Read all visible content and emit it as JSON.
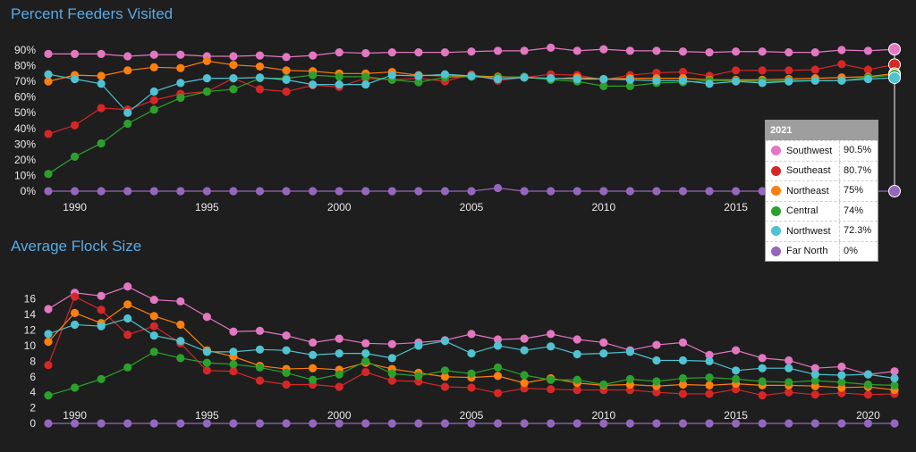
{
  "chart_data": [
    {
      "type": "line",
      "title": "Percent Feeders Visited",
      "x": [
        1989,
        1990,
        1991,
        1992,
        1993,
        1994,
        1995,
        1996,
        1997,
        1998,
        1999,
        2000,
        2001,
        2002,
        2003,
        2004,
        2005,
        2006,
        2007,
        2008,
        2009,
        2010,
        2011,
        2012,
        2013,
        2014,
        2015,
        2016,
        2017,
        2018,
        2019,
        2020,
        2021
      ],
      "xlim": [
        1989,
        2021
      ],
      "ylim": [
        0,
        90
      ],
      "y_ticks": [
        "0%",
        "10%",
        "20%",
        "30%",
        "40%",
        "50%",
        "60%",
        "70%",
        "80%",
        "90%"
      ],
      "x_ticks": [
        1990,
        1995,
        2000,
        2005,
        2010,
        2015
      ],
      "series": [
        {
          "name": "Southwest",
          "color": "#e377c2",
          "values": [
            87.5,
            87.5,
            87.5,
            86,
            87,
            87,
            86,
            86,
            86.5,
            85.5,
            86.5,
            88.5,
            88,
            88.5,
            88.5,
            88.5,
            89,
            89.5,
            89.5,
            91.5,
            89.5,
            90.5,
            89.5,
            89.5,
            89,
            88.5,
            89,
            89,
            88.5,
            88.5,
            90,
            89.5,
            90.5
          ]
        },
        {
          "name": "Southeast",
          "color": "#d62728",
          "values": [
            36.5,
            42,
            53,
            52,
            58,
            62,
            63.5,
            72,
            65,
            63.5,
            67.5,
            66.5,
            72,
            71,
            72,
            70,
            74.5,
            70.5,
            72.5,
            74.5,
            74,
            71,
            74,
            75.5,
            76,
            73.5,
            77,
            77,
            77,
            77.5,
            81,
            77.5,
            80.7
          ]
        },
        {
          "name": "Northeast",
          "color": "#ff7f0e",
          "values": [
            70,
            74,
            73.5,
            77,
            79,
            78.5,
            83,
            80.5,
            79.5,
            77,
            76.5,
            75,
            75,
            76,
            74,
            73.5,
            73.5,
            73,
            72.5,
            71.5,
            72.5,
            71.5,
            72,
            72,
            72,
            71,
            71,
            71,
            71.5,
            72,
            72.5,
            73,
            75
          ]
        },
        {
          "name": "Central",
          "color": "#2ca02c",
          "values": [
            11,
            22,
            30.5,
            43,
            52,
            59.5,
            63.5,
            65,
            72,
            72,
            74,
            73,
            73,
            71,
            69.5,
            72.5,
            73,
            72.5,
            73,
            71,
            70,
            67,
            67,
            69,
            69.5,
            70.5,
            70.5,
            70,
            70.5,
            70.5,
            70.5,
            72.5,
            74
          ]
        },
        {
          "name": "Northwest",
          "color": "#4fc3d1",
          "values": [
            74.5,
            71.5,
            68.5,
            50,
            63.5,
            69,
            72,
            72,
            72.5,
            71,
            68,
            68,
            68,
            74,
            73.5,
            74.5,
            73.5,
            71.5,
            72.5,
            72,
            71.5,
            71.5,
            71,
            70.5,
            70.5,
            68.5,
            70,
            69,
            70,
            70.5,
            70.5,
            71.5,
            72.3
          ]
        },
        {
          "name": "Far North",
          "color": "#9467bd",
          "values": [
            0,
            0,
            0,
            0,
            0,
            0,
            0,
            0,
            0,
            0,
            0,
            0,
            0,
            0,
            0,
            0,
            0,
            2,
            0,
            0,
            0,
            0,
            0,
            0,
            0,
            0,
            0,
            0,
            0,
            0,
            0,
            0,
            0
          ]
        }
      ],
      "tooltip": {
        "year": "2021",
        "rows": [
          {
            "name": "Southwest",
            "value": "90.5%",
            "color": "#e377c2"
          },
          {
            "name": "Southeast",
            "value": "80.7%",
            "color": "#d62728"
          },
          {
            "name": "Northeast",
            "value": "75%",
            "color": "#ff7f0e"
          },
          {
            "name": "Central",
            "value": "74%",
            "color": "#2ca02c"
          },
          {
            "name": "Northwest",
            "value": "72.3%",
            "color": "#4fc3d1"
          },
          {
            "name": "Far North",
            "value": "0%",
            "color": "#9467bd"
          }
        ]
      }
    },
    {
      "type": "line",
      "title": "Average Flock Size",
      "x": [
        1989,
        1990,
        1991,
        1992,
        1993,
        1994,
        1995,
        1996,
        1997,
        1998,
        1999,
        2000,
        2001,
        2002,
        2003,
        2004,
        2005,
        2006,
        2007,
        2008,
        2009,
        2010,
        2011,
        2012,
        2013,
        2014,
        2015,
        2016,
        2017,
        2018,
        2019,
        2020,
        2021
      ],
      "xlim": [
        1989,
        2021
      ],
      "ylim": [
        0,
        17
      ],
      "y_ticks": [
        0,
        2,
        4,
        6,
        8,
        10,
        12,
        14,
        16
      ],
      "x_ticks": [
        1990,
        1995,
        2000,
        2005,
        2010,
        2015,
        2020
      ],
      "series": [
        {
          "name": "Southwest",
          "color": "#e377c2",
          "values": [
            14.7,
            16.8,
            16.4,
            17.6,
            15.9,
            15.7,
            13.7,
            11.8,
            11.9,
            11.3,
            10.4,
            10.9,
            10.3,
            10.2,
            10.4,
            10.7,
            11.5,
            10.8,
            10.9,
            11.5,
            10.8,
            10.4,
            9.4,
            10.1,
            10.4,
            8.8,
            9.4,
            8.4,
            8.1,
            7.1,
            7.3,
            6.3,
            6.7
          ]
        },
        {
          "name": "Southeast",
          "color": "#d62728",
          "values": [
            7.5,
            16.3,
            14.6,
            11.4,
            12.5,
            10.3,
            6.8,
            6.7,
            5.5,
            5.0,
            5.0,
            4.7,
            6.6,
            5.5,
            5.4,
            4.7,
            4.6,
            3.9,
            4.5,
            4.4,
            4.3,
            4.3,
            4.3,
            4.0,
            3.8,
            3.8,
            4.4,
            3.6,
            4.0,
            3.7,
            3.9,
            3.7,
            3.8
          ]
        },
        {
          "name": "Northeast",
          "color": "#ff7f0e",
          "values": [
            10.5,
            14.2,
            12.9,
            15.3,
            13.8,
            12.7,
            9.4,
            8.6,
            7.4,
            7.0,
            7.1,
            6.9,
            7.8,
            7.0,
            6.5,
            6.0,
            5.9,
            6.1,
            5.2,
            5.8,
            5.2,
            4.9,
            5.0,
            4.8,
            5.0,
            4.9,
            5.1,
            4.9,
            4.9,
            4.8,
            4.6,
            4.7,
            4.3
          ]
        },
        {
          "name": "Central",
          "color": "#2ca02c",
          "values": [
            3.6,
            4.6,
            5.7,
            7.2,
            9.2,
            8.4,
            7.8,
            7.6,
            7.2,
            6.5,
            5.6,
            6.3,
            8.0,
            6.4,
            6.1,
            6.8,
            6.4,
            7.2,
            6.2,
            5.6,
            5.6,
            5.0,
            5.7,
            5.4,
            5.8,
            5.9,
            5.7,
            5.4,
            5.3,
            5.5,
            5.3,
            5.0,
            4.9
          ]
        },
        {
          "name": "Northwest",
          "color": "#4fc3d1",
          "values": [
            11.5,
            12.7,
            12.5,
            13.5,
            11.3,
            10.6,
            9.2,
            9.2,
            9.5,
            9.4,
            8.8,
            9.0,
            9.0,
            8.4,
            10.0,
            10.6,
            9.0,
            10.0,
            9.4,
            9.9,
            8.9,
            9.0,
            9.2,
            8.1,
            8.1,
            8.0,
            6.8,
            7.1,
            7.1,
            6.3,
            6.2,
            6.3,
            5.8
          ]
        },
        {
          "name": "Far North",
          "color": "#9467bd",
          "values": [
            0,
            0,
            0,
            0,
            0,
            0,
            0,
            0,
            0,
            0,
            0,
            0,
            0,
            0,
            0,
            0,
            0,
            0,
            0,
            0,
            0,
            0,
            0,
            0,
            0,
            0,
            0,
            0,
            0,
            0,
            0,
            0,
            0
          ]
        }
      ]
    }
  ]
}
